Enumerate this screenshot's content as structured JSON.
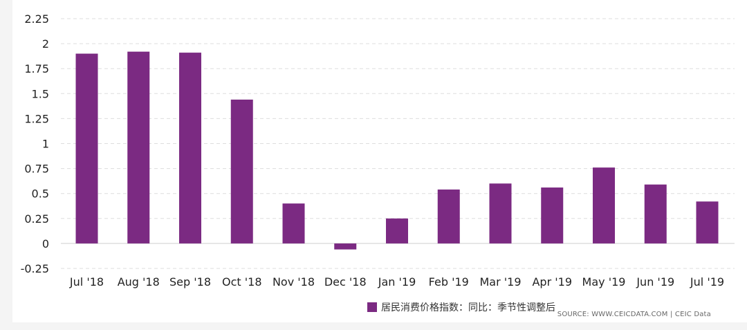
{
  "chart_data": {
    "type": "bar",
    "categories": [
      "Jul '18",
      "Aug '18",
      "Sep '18",
      "Oct '18",
      "Nov '18",
      "Dec '18",
      "Jan '19",
      "Feb '19",
      "Mar '19",
      "Apr '19",
      "May '19",
      "Jun '19",
      "Jul '19"
    ],
    "series": [
      {
        "name": "居民消费价格指数：同比：季节性调整后",
        "values": [
          1.9,
          1.92,
          1.91,
          1.44,
          0.4,
          -0.06,
          0.25,
          0.54,
          0.6,
          0.56,
          0.76,
          0.59,
          0.42
        ]
      }
    ],
    "yticks": [
      "2.25",
      "2",
      "1.75",
      "1.5",
      "1.25",
      "1",
      "0.75",
      "0.5",
      "0.25",
      "0",
      "-0.25"
    ],
    "ylim": [
      -0.25,
      2.25
    ],
    "grid": true,
    "legend_position": "bottom",
    "bar_color": "#7b2a82",
    "title": "",
    "xlabel": "",
    "ylabel": ""
  },
  "source": "SOURCE: WWW.CEICDATA.COM | CEIC Data"
}
